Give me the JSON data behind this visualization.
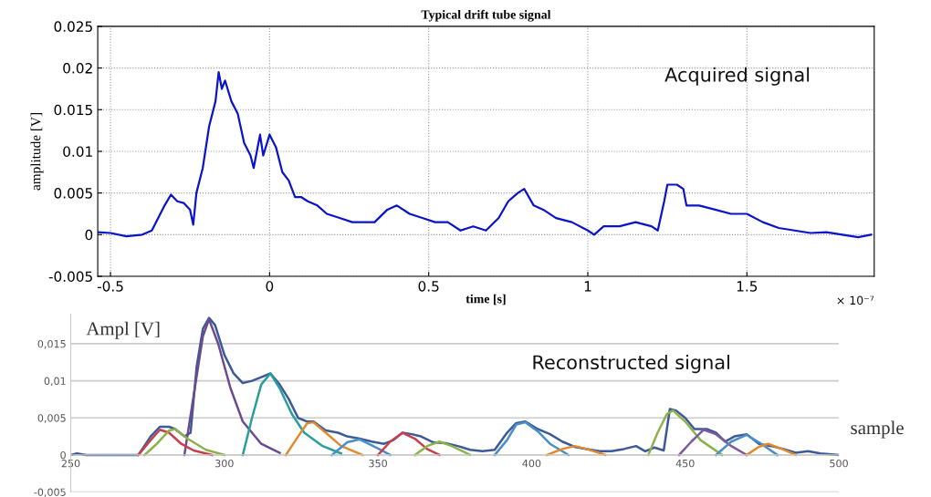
{
  "chart_data": [
    {
      "type": "line",
      "title": "Typical drift tube signal",
      "xlabel": "time [s]",
      "ylabel": "amplitude [V]",
      "annotations": [
        "Acquired signal",
        "× 10⁻⁷"
      ],
      "xlim": [
        -0.54,
        1.9
      ],
      "xticks": [
        {
          "value": -0.5,
          "label": "-0.5"
        },
        0,
        0.5,
        1,
        1.5
      ],
      "ylim": [
        -0.005,
        0.025
      ],
      "yticks": [
        {
          "value": -0.005,
          "label": "-0.005"
        },
        0,
        0.005,
        0.01,
        0.015,
        0.02,
        0.025
      ],
      "grid": true,
      "series": [
        {
          "color": "#0a14c8",
          "x": [
            -0.54,
            -0.5,
            -0.45,
            -0.4,
            -0.37,
            -0.35,
            -0.33,
            -0.31,
            -0.29,
            -0.27,
            -0.25,
            -0.24,
            -0.23,
            -0.21,
            -0.19,
            -0.17,
            -0.16,
            -0.15,
            -0.14,
            -0.12,
            -0.1,
            -0.08,
            -0.06,
            -0.05,
            -0.03,
            -0.02,
            0.0,
            0.02,
            0.04,
            0.06,
            0.08,
            0.1,
            0.12,
            0.15,
            0.18,
            0.22,
            0.26,
            0.3,
            0.33,
            0.37,
            0.4,
            0.44,
            0.48,
            0.52,
            0.56,
            0.6,
            0.64,
            0.68,
            0.72,
            0.75,
            0.78,
            0.8,
            0.83,
            0.86,
            0.9,
            0.95,
            1.0,
            1.02,
            1.05,
            1.1,
            1.15,
            1.2,
            1.22,
            1.24,
            1.25,
            1.28,
            1.3,
            1.31,
            1.35,
            1.4,
            1.45,
            1.5,
            1.55,
            1.6,
            1.65,
            1.7,
            1.75,
            1.8,
            1.85,
            1.89
          ],
          "values": [
            0.0003,
            0.0002,
            -0.0002,
            0.0,
            0.0005,
            0.002,
            0.0035,
            0.0048,
            0.004,
            0.0038,
            0.003,
            0.0012,
            0.005,
            0.008,
            0.013,
            0.016,
            0.0195,
            0.0175,
            0.0185,
            0.016,
            0.0145,
            0.011,
            0.0095,
            0.008,
            0.012,
            0.0095,
            0.012,
            0.0105,
            0.0075,
            0.0065,
            0.0045,
            0.0045,
            0.004,
            0.0035,
            0.0025,
            0.002,
            0.0015,
            0.0015,
            0.0015,
            0.003,
            0.0035,
            0.0025,
            0.002,
            0.0015,
            0.0015,
            0.0005,
            0.001,
            0.0005,
            0.002,
            0.004,
            0.005,
            0.0055,
            0.0035,
            0.003,
            0.002,
            0.0015,
            0.0005,
            0.0,
            0.001,
            0.001,
            0.0015,
            0.001,
            0.0005,
            0.004,
            0.006,
            0.006,
            0.0055,
            0.0035,
            0.0035,
            0.003,
            0.0025,
            0.0025,
            0.0015,
            0.0008,
            0.0005,
            0.0002,
            0.0003,
            0.0,
            -0.0003,
            0.0
          ]
        }
      ]
    },
    {
      "type": "line",
      "xlabel": "sample",
      "ylabel": "Ampl [V]",
      "annotations": [
        "Reconstructed signal"
      ],
      "xlim": [
        250,
        500
      ],
      "xticks": [
        250,
        300,
        350,
        400,
        450,
        500
      ],
      "ylim": [
        -0.005,
        0.019
      ],
      "yticks": [
        {
          "value": -0.005,
          "label": "-0,005"
        },
        0,
        {
          "value": 0.005,
          "label": "0,005"
        },
        {
          "value": 0.01,
          "label": "0,01"
        },
        {
          "value": 0.015,
          "label": "0,015"
        }
      ],
      "grid": "y",
      "series": [
        {
          "color": "#3d5a98",
          "x": [
            250,
            252,
            255,
            272,
            276,
            279,
            282,
            284,
            287,
            289,
            291,
            293,
            295,
            297,
            300,
            303,
            306,
            309,
            312,
            315,
            318,
            321,
            324,
            327,
            329,
            333,
            337,
            340,
            344,
            348,
            352,
            355,
            358,
            361,
            364,
            368,
            372,
            376,
            380,
            384,
            388,
            392,
            395,
            398,
            402,
            406,
            410,
            414,
            418,
            422,
            426,
            430,
            434,
            437,
            440,
            443,
            445,
            447,
            450,
            453,
            457,
            460,
            463,
            466,
            470,
            474,
            478,
            482,
            486,
            490,
            494,
            500
          ],
          "values": [
            0,
            0.0002,
            0,
            0,
            0.0025,
            0.0038,
            0.0038,
            0.0035,
            0.0025,
            0.003,
            0.012,
            0.017,
            0.0185,
            0.0175,
            0.0135,
            0.011,
            0.0097,
            0.01,
            0.0105,
            0.011,
            0.0095,
            0.0075,
            0.005,
            0.0045,
            0.0045,
            0.0033,
            0.003,
            0.0025,
            0.0022,
            0.0018,
            0.0015,
            0.002,
            0.003,
            0.0028,
            0.0025,
            0.0017,
            0.0016,
            0.0012,
            0.0007,
            0.0005,
            0.0007,
            0.003,
            0.0043,
            0.0045,
            0.0035,
            0.0028,
            0.0018,
            0.0011,
            0.0008,
            0.0005,
            0.0005,
            0.0008,
            0.0012,
            0.0005,
            0.001,
            0.0006,
            0.0062,
            0.006,
            0.005,
            0.0035,
            0.0035,
            0.003,
            0.0018,
            0.0025,
            0.0028,
            0.0015,
            0.0012,
            0.0008,
            0.0003,
            0.0005,
            0.0002,
            0
          ]
        },
        {
          "color": "#6b4a8e",
          "x": [
            287,
            290,
            293,
            295,
            298,
            302,
            306,
            312,
            318
          ],
          "values": [
            0,
            0.008,
            0.016,
            0.0183,
            0.015,
            0.009,
            0.0045,
            0.0015,
            0.0003
          ]
        },
        {
          "color": "#2a9d9d",
          "x": [
            306,
            309,
            312,
            315,
            318,
            322,
            326,
            332,
            338
          ],
          "values": [
            0,
            0.005,
            0.0095,
            0.011,
            0.009,
            0.0055,
            0.003,
            0.0012,
            0.0002
          ]
        },
        {
          "color": "#c8404f",
          "x": [
            272,
            276,
            279,
            282,
            286,
            290,
            296
          ],
          "values": [
            0,
            0.002,
            0.0034,
            0.003,
            0.0015,
            0.0006,
            0
          ]
        },
        {
          "color": "#8db24a",
          "x": [
            274,
            278,
            282,
            284,
            288,
            294,
            300
          ],
          "values": [
            0,
            0.0015,
            0.0033,
            0.0035,
            0.0022,
            0.0007,
            0
          ]
        },
        {
          "color": "#e08a2e",
          "x": [
            320,
            324,
            327,
            329,
            333,
            338,
            345
          ],
          "values": [
            0,
            0.0025,
            0.0043,
            0.0044,
            0.003,
            0.0012,
            0
          ]
        },
        {
          "color": "#4a8fc8",
          "x": [
            335,
            340,
            344,
            348,
            354
          ],
          "values": [
            0,
            0.0017,
            0.0021,
            0.0013,
            0
          ]
        },
        {
          "color": "#c8404f",
          "x": [
            350,
            354,
            358,
            362,
            366,
            370
          ],
          "values": [
            0,
            0.0018,
            0.003,
            0.0022,
            0.0008,
            0
          ]
        },
        {
          "color": "#8db24a",
          "x": [
            362,
            366,
            370,
            374,
            380
          ],
          "values": [
            0,
            0.0012,
            0.0018,
            0.0012,
            0
          ]
        },
        {
          "color": "#4a8fc8",
          "x": [
            388,
            392,
            395,
            398,
            402,
            406,
            412
          ],
          "values": [
            0,
            0.002,
            0.0041,
            0.0044,
            0.0032,
            0.0015,
            0
          ]
        },
        {
          "color": "#e08a2e",
          "x": [
            405,
            410,
            414,
            418,
            424
          ],
          "values": [
            0,
            0.0008,
            0.0012,
            0.0008,
            0
          ]
        },
        {
          "color": "#8db24a",
          "x": [
            438,
            441,
            444,
            446,
            450,
            455,
            462
          ],
          "values": [
            0,
            0.003,
            0.0055,
            0.006,
            0.0045,
            0.002,
            0
          ]
        },
        {
          "color": "#7a5aa0",
          "x": [
            448,
            452,
            456,
            460,
            465,
            470
          ],
          "values": [
            0,
            0.0018,
            0.0034,
            0.0028,
            0.0012,
            0
          ]
        },
        {
          "color": "#4a8fc8",
          "x": [
            460,
            465,
            470,
            474,
            480
          ],
          "values": [
            0,
            0.0018,
            0.0027,
            0.0017,
            0
          ]
        },
        {
          "color": "#e08a2e",
          "x": [
            470,
            474,
            477,
            481,
            486
          ],
          "values": [
            0,
            0.0011,
            0.0015,
            0.0009,
            0
          ]
        }
      ]
    }
  ]
}
